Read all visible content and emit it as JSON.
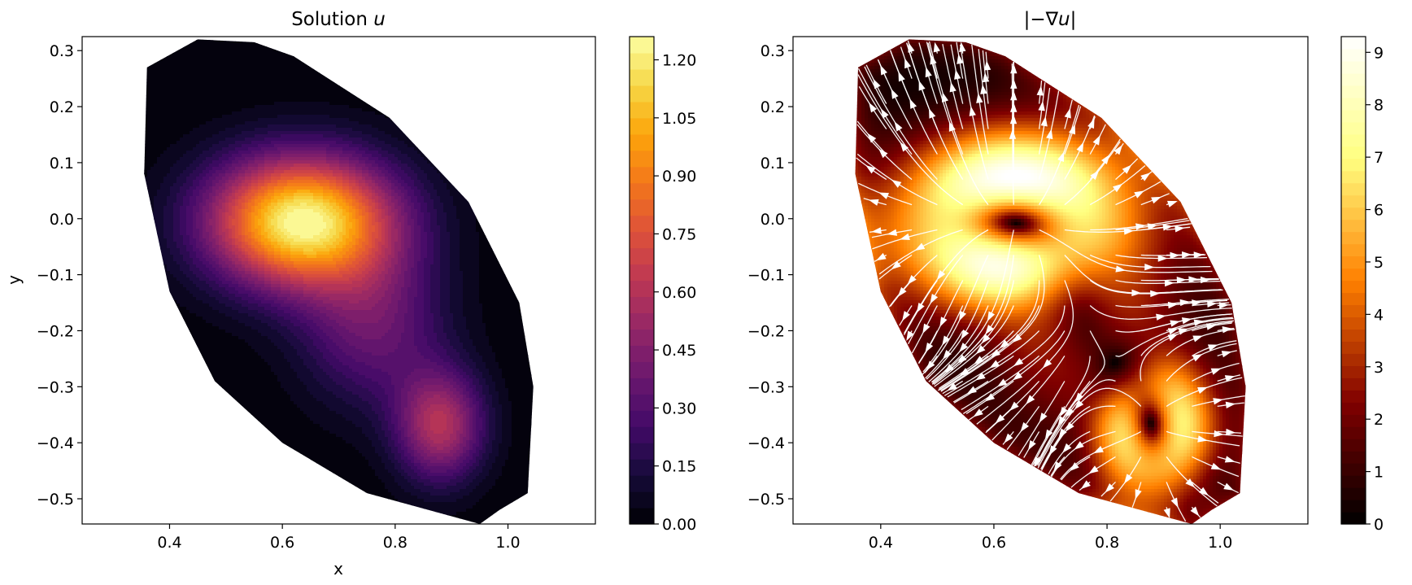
{
  "chart_data": [
    {
      "type": "contour",
      "title": "Solution u",
      "title_text": "Solution ",
      "title_italic": "u",
      "xlabel": "x",
      "ylabel": "y",
      "xlim": [
        0.245,
        1.155
      ],
      "ylim": [
        -0.545,
        0.325
      ],
      "xticks": [
        0.4,
        0.6,
        0.8,
        1.0
      ],
      "xtick_labels": [
        "0.4",
        "0.6",
        "0.8",
        "1.0"
      ],
      "yticks": [
        0.3,
        0.2,
        0.1,
        0.0,
        -0.1,
        -0.2,
        -0.3,
        -0.4,
        -0.5
      ],
      "ytick_labels": [
        "0.3",
        "0.2",
        "0.1",
        "0.0",
        "−0.1",
        "−0.2",
        "−0.3",
        "−0.4",
        "−0.5"
      ],
      "colormap": "inferno",
      "colorbar": {
        "range": [
          0.0,
          1.26
        ],
        "ticks": [
          0.0,
          0.15,
          0.3,
          0.45,
          0.6,
          0.75,
          0.9,
          1.05,
          1.2
        ],
        "tick_labels": [
          "0.00",
          "0.15",
          "0.30",
          "0.45",
          "0.60",
          "0.75",
          "0.90",
          "1.05",
          "1.20"
        ]
      },
      "levels": 30,
      "domain_outline": [
        [
          0.45,
          0.32
        ],
        [
          0.36,
          0.27
        ],
        [
          0.355,
          0.08
        ],
        [
          0.4,
          -0.13
        ],
        [
          0.48,
          -0.29
        ],
        [
          0.6,
          -0.4
        ],
        [
          0.75,
          -0.49
        ],
        [
          0.95,
          -0.545
        ],
        [
          0.985,
          -0.52
        ],
        [
          1.035,
          -0.49
        ],
        [
          1.045,
          -0.3
        ],
        [
          1.02,
          -0.15
        ],
        [
          0.93,
          0.03
        ],
        [
          0.79,
          0.18
        ],
        [
          0.62,
          0.29
        ],
        [
          0.55,
          0.315
        ]
      ],
      "peaks": [
        {
          "x": 0.635,
          "y": -0.005,
          "value": 1.25,
          "sx": 0.115,
          "sy": 0.082
        },
        {
          "x": 0.88,
          "y": -0.37,
          "value": 0.58,
          "sx": 0.055,
          "sy": 0.07
        },
        {
          "x": 0.76,
          "y": -0.19,
          "value": 0.36,
          "sx": 0.09,
          "sy": 0.1
        }
      ]
    },
    {
      "type": "heatmap",
      "title": "|−∇u|",
      "title_pre": "|−∇",
      "title_italic": "u",
      "title_post": "|",
      "xlabel": "",
      "ylabel": "",
      "xlim": [
        0.245,
        1.155
      ],
      "ylim": [
        -0.545,
        0.325
      ],
      "xticks": [
        0.4,
        0.6,
        0.8,
        1.0
      ],
      "xtick_labels": [
        "0.4",
        "0.6",
        "0.8",
        "1.0"
      ],
      "yticks": [
        0.3,
        0.2,
        0.1,
        0.0,
        -0.1,
        -0.2,
        -0.3,
        -0.4,
        -0.5
      ],
      "ytick_labels": [
        "0.3",
        "0.2",
        "0.1",
        "0.0",
        "−0.1",
        "−0.2",
        "−0.3",
        "−0.4",
        "−0.5"
      ],
      "colormap": "afmhot",
      "colorbar": {
        "range": [
          0,
          9.3
        ],
        "ticks": [
          0,
          1,
          2,
          3,
          4,
          5,
          6,
          7,
          8,
          9
        ],
        "tick_labels": [
          "0",
          "1",
          "2",
          "3",
          "4",
          "5",
          "6",
          "7",
          "8",
          "9"
        ]
      },
      "streamlines": {
        "color": "#ffffff"
      }
    }
  ]
}
